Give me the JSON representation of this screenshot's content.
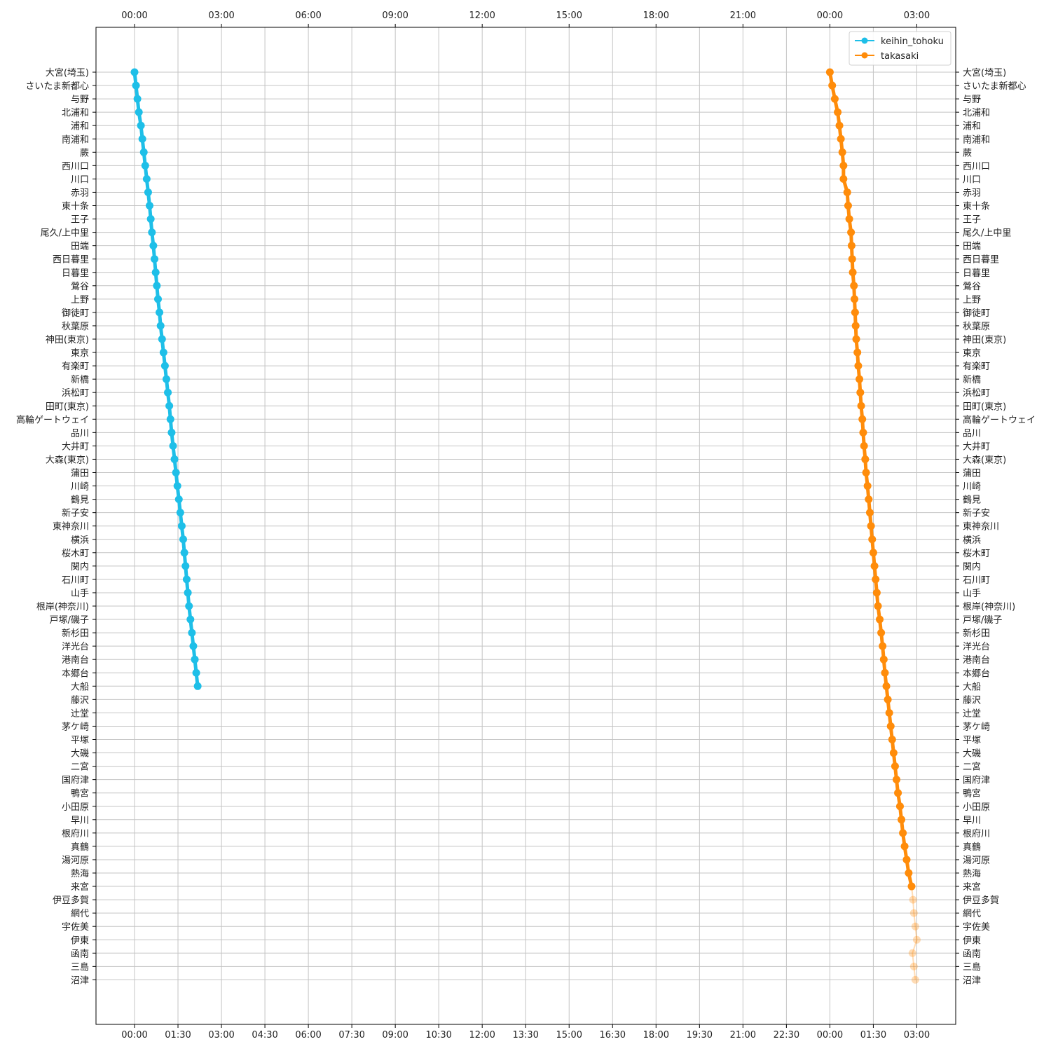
{
  "chart_data": {
    "type": "line",
    "title": "",
    "xlabel": "",
    "ylabel": "",
    "grid": true,
    "legend_position": "top-right",
    "x_axis": {
      "unit": "hours since 00:00",
      "range": [
        -1.3,
        28.35
      ],
      "bottom_ticks": [
        {
          "value": 0,
          "label": "00:00"
        },
        {
          "value": 1.5,
          "label": "01:30"
        },
        {
          "value": 3,
          "label": "03:00"
        },
        {
          "value": 4.5,
          "label": "04:30"
        },
        {
          "value": 6,
          "label": "06:00"
        },
        {
          "value": 7.5,
          "label": "07:30"
        },
        {
          "value": 9,
          "label": "09:00"
        },
        {
          "value": 10.5,
          "label": "10:30"
        },
        {
          "value": 12,
          "label": "12:00"
        },
        {
          "value": 13.5,
          "label": "13:30"
        },
        {
          "value": 15,
          "label": "15:00"
        },
        {
          "value": 16.5,
          "label": "16:30"
        },
        {
          "value": 18,
          "label": "18:00"
        },
        {
          "value": 19.5,
          "label": "19:30"
        },
        {
          "value": 21,
          "label": "21:00"
        },
        {
          "value": 22.5,
          "label": "22:30"
        },
        {
          "value": 24,
          "label": "00:00"
        },
        {
          "value": 25.5,
          "label": "01:30"
        },
        {
          "value": 27,
          "label": "03:00"
        }
      ],
      "top_ticks": [
        {
          "value": 0,
          "label": "00:00"
        },
        {
          "value": 3,
          "label": "03:00"
        },
        {
          "value": 6,
          "label": "06:00"
        },
        {
          "value": 9,
          "label": "09:00"
        },
        {
          "value": 12,
          "label": "12:00"
        },
        {
          "value": 15,
          "label": "15:00"
        },
        {
          "value": 18,
          "label": "18:00"
        },
        {
          "value": 21,
          "label": "21:00"
        },
        {
          "value": 24,
          "label": "00:00"
        },
        {
          "value": 27,
          "label": "03:00"
        }
      ]
    },
    "stations": [
      "大宮(埼玉)",
      "さいたま新都心",
      "与野",
      "北浦和",
      "浦和",
      "南浦和",
      "蕨",
      "西川口",
      "川口",
      "赤羽",
      "東十条",
      "王子",
      "尾久/上中里",
      "田端",
      "西日暮里",
      "日暮里",
      "鶯谷",
      "上野",
      "御徒町",
      "秋葉原",
      "神田(東京)",
      "東京",
      "有楽町",
      "新橋",
      "浜松町",
      "田町(東京)",
      "高輪ゲートウェイ",
      "品川",
      "大井町",
      "大森(東京)",
      "蒲田",
      "川崎",
      "鶴見",
      "新子安",
      "東神奈川",
      "横浜",
      "桜木町",
      "関内",
      "石川町",
      "山手",
      "根岸(神奈川)",
      "戸塚/磯子",
      "新杉田",
      "洋光台",
      "港南台",
      "本郷台",
      "大船",
      "藤沢",
      "辻堂",
      "茅ケ崎",
      "平塚",
      "大磯",
      "二宮",
      "国府津",
      "鴨宮",
      "小田原",
      "早川",
      "根府川",
      "真鶴",
      "湯河原",
      "熱海",
      "来宮",
      "伊豆多賀",
      "網代",
      "宇佐美",
      "伊東",
      "函南",
      "三島",
      "沼津"
    ],
    "series": [
      {
        "name": "keihin_tohoku",
        "color": "#1ebfe8",
        "x": [
          0.0,
          0.05,
          0.1,
          0.15,
          0.22,
          0.27,
          0.32,
          0.37,
          0.42,
          0.47,
          0.52,
          0.56,
          0.6,
          0.65,
          0.69,
          0.73,
          0.77,
          0.81,
          0.86,
          0.9,
          0.95,
          1.0,
          1.05,
          1.1,
          1.15,
          1.2,
          1.24,
          1.28,
          1.33,
          1.38,
          1.43,
          1.48,
          1.53,
          1.58,
          1.63,
          1.68,
          1.72,
          1.76,
          1.8,
          1.84,
          1.88,
          1.93,
          1.98,
          2.03,
          2.08,
          2.13,
          2.18
        ],
        "y_start_index": 0
      },
      {
        "name": "takasaki",
        "color": "#ff8c0a",
        "x": [
          24.0,
          24.08,
          24.17,
          24.27,
          24.33,
          24.38,
          24.43,
          24.47,
          24.47,
          24.6,
          24.63,
          24.67,
          24.73,
          24.75,
          24.77,
          24.79,
          24.83,
          24.85,
          24.87,
          24.89,
          24.91,
          24.95,
          24.98,
          25.02,
          25.05,
          25.08,
          25.12,
          25.15,
          25.18,
          25.22,
          25.25,
          25.3,
          25.34,
          25.38,
          25.42,
          25.46,
          25.5,
          25.54,
          25.58,
          25.62,
          25.66,
          25.72,
          25.77,
          25.82,
          25.86,
          25.9,
          25.95,
          26.0,
          26.05,
          26.1,
          26.15,
          26.2,
          26.25,
          26.3,
          26.35,
          26.42,
          26.47,
          26.52,
          26.58,
          26.65,
          26.72,
          26.82,
          26.87,
          26.9,
          26.95,
          27.0,
          26.85,
          26.9,
          26.95
        ],
        "y_start_index": 0,
        "faded_from_index": 61
      }
    ]
  }
}
